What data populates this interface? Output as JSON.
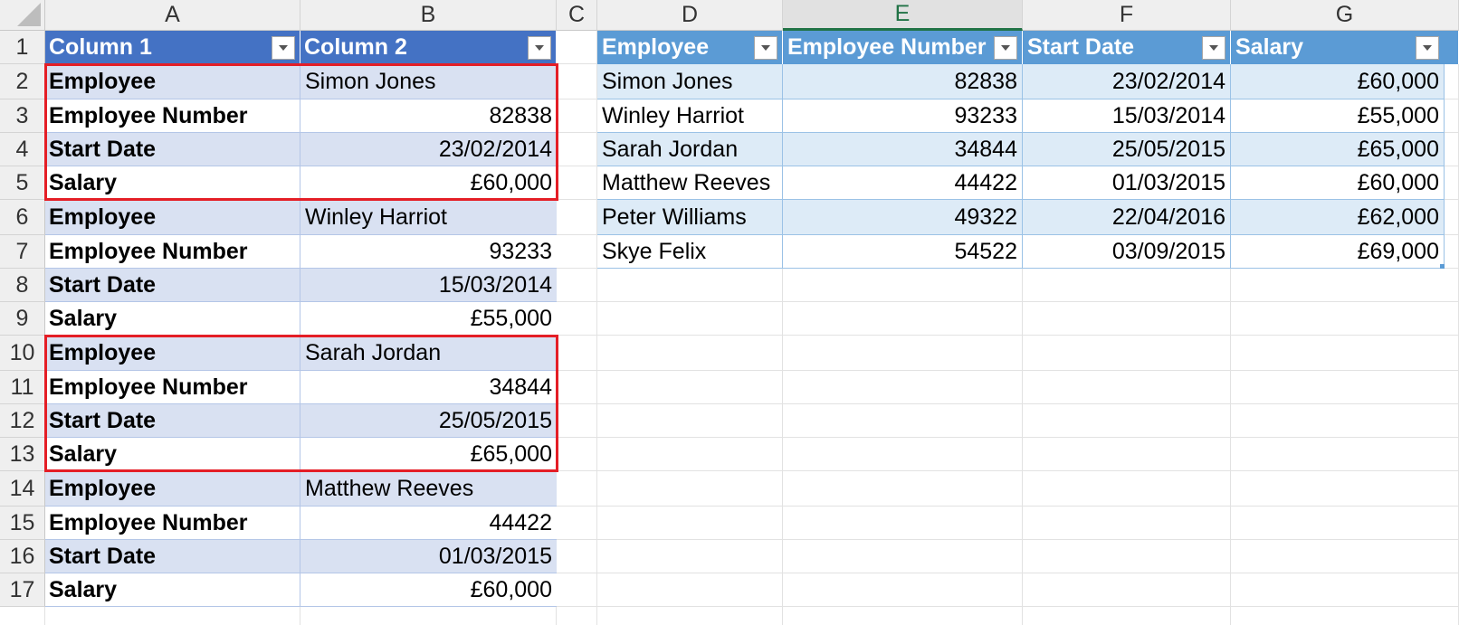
{
  "columns": [
    "A",
    "B",
    "C",
    "D",
    "E",
    "F",
    "G"
  ],
  "rows": [
    "1",
    "2",
    "3",
    "4",
    "5",
    "6",
    "7",
    "8",
    "9",
    "10",
    "11",
    "12",
    "13",
    "14",
    "15",
    "16",
    "17"
  ],
  "selected_column": "E",
  "table1": {
    "headers": [
      "Column 1",
      "Column 2"
    ],
    "rows": [
      [
        "Employee",
        "Simon Jones"
      ],
      [
        "Employee Number",
        "82838"
      ],
      [
        "Start Date",
        "23/02/2014"
      ],
      [
        "Salary",
        "£60,000"
      ],
      [
        "Employee",
        "Winley Harriot"
      ],
      [
        "Employee Number",
        "93233"
      ],
      [
        "Start Date",
        "15/03/2014"
      ],
      [
        "Salary",
        "£55,000"
      ],
      [
        "Employee",
        "Sarah Jordan"
      ],
      [
        "Employee Number",
        "34844"
      ],
      [
        "Start Date",
        "25/05/2015"
      ],
      [
        "Salary",
        "£65,000"
      ],
      [
        "Employee",
        "Matthew Reeves"
      ],
      [
        "Employee Number",
        "44422"
      ],
      [
        "Start Date",
        "01/03/2015"
      ],
      [
        "Salary",
        "£60,000"
      ]
    ]
  },
  "table2": {
    "headers": [
      "Employee",
      "Employee Number",
      "Start Date",
      "Salary"
    ],
    "rows": [
      [
        "Simon Jones",
        "82838",
        "23/02/2014",
        "£60,000"
      ],
      [
        "Winley Harriot",
        "93233",
        "15/03/2014",
        "£55,000"
      ],
      [
        "Sarah Jordan",
        "34844",
        "25/05/2015",
        "£65,000"
      ],
      [
        "Matthew Reeves",
        "44422",
        "01/03/2015",
        "£60,000"
      ],
      [
        "Peter Williams",
        "49322",
        "22/04/2016",
        "£62,000"
      ],
      [
        "Skye Felix",
        "54522",
        "03/09/2015",
        "£69,000"
      ]
    ]
  },
  "colors": {
    "table1_header": "#4472c4",
    "table1_band": "#d9e1f2",
    "table2_header": "#5b9bd5",
    "table2_band": "#ddebf7",
    "highlight_border": "#e41e26",
    "selected_column_accent": "#217346"
  }
}
